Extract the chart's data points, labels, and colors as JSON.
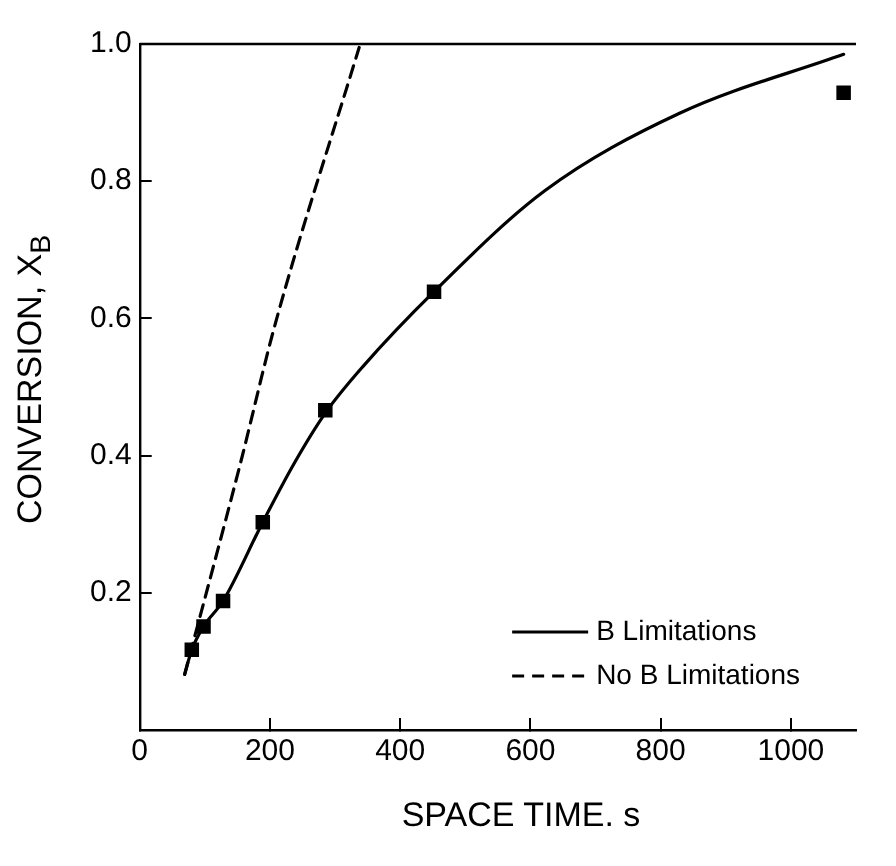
{
  "chart_data": {
    "type": "line",
    "xlabel": "SPACE TIME. s",
    "ylabel": "CONVERSION, X$_{B}$",
    "xlim": [
      0,
      1100
    ],
    "xticks": [
      0,
      200,
      400,
      600,
      800,
      1000
    ],
    "ylim": [
      0,
      1.0
    ],
    "yticks": [
      {
        "value": 0.2,
        "label": "0.2"
      },
      {
        "value": 0.4,
        "label": "0.4"
      },
      {
        "value": 0.6,
        "label": "0.6"
      },
      {
        "value": 0.8,
        "label": "0.8"
      },
      {
        "value": 1.0,
        "label": "1.0"
      }
    ],
    "grid": false,
    "legend": "bottom right",
    "series": [
      {
        "name": "B Limitations",
        "color": "#000000",
        "line_style": "solid",
        "marker": "none",
        "x": [
          69,
          80,
          98,
          128,
          189,
          238,
          285,
          342,
          452,
          622,
          829,
          1081
        ],
        "values": [
          0.081,
          0.117,
          0.151,
          0.188,
          0.303,
          0.39,
          0.462,
          0.529,
          0.639,
          0.786,
          0.899,
          0.985
        ]
      },
      {
        "name": "No B Limitations",
        "color": "#000000",
        "line_style": "dashed",
        "marker": "none",
        "x": [
          69,
          155,
          207,
          337
        ],
        "values": [
          0.081,
          0.39,
          0.588,
          0.995
        ]
      },
      {
        "type": "scatter",
        "color": "#000000",
        "marker": "square",
        "x": [
          80,
          98,
          128,
          189,
          285,
          452,
          1081
        ],
        "values": [
          0.117,
          0.151,
          0.188,
          0.303,
          0.466,
          0.639,
          0.929
        ]
      }
    ]
  }
}
